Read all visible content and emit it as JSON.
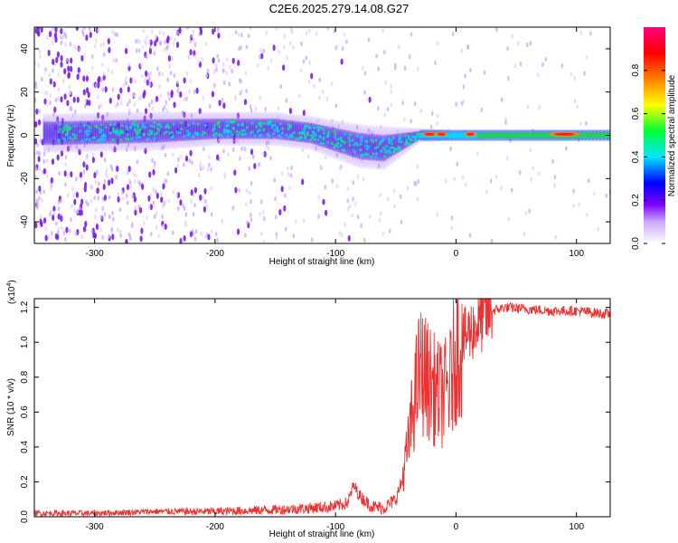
{
  "title": "C2E6.2025.279.14.08.G27",
  "chart_data": [
    {
      "type": "heatmap",
      "xlabel": "Height of straight line (km)",
      "ylabel": "Frequency (Hz)",
      "xlim": [
        -350,
        128
      ],
      "ylim": [
        -50,
        50
      ],
      "xticks": [
        -300,
        -200,
        -100,
        0,
        100
      ],
      "yticks": [
        -40,
        -20,
        0,
        20,
        40
      ],
      "colorbar": {
        "label": "Normalized spectral amplitude",
        "range": [
          0.0,
          1.0
        ],
        "ticks": [
          0.0,
          0.2,
          0.4,
          0.6,
          0.8
        ],
        "colors": [
          "#ffffff",
          "#7e00ff",
          "#0000ff",
          "#00e5ff",
          "#00ff33",
          "#ffff00",
          "#ff7f00",
          "#ff0000",
          "#ff0080"
        ]
      },
      "ridge": {
        "x": [
          -330,
          -250,
          -200,
          -150,
          -120,
          -100,
          -80,
          -60,
          -45,
          -30,
          0,
          50,
          100,
          128
        ],
        "frequency": [
          1,
          2,
          3,
          3,
          1,
          -2,
          -5,
          -6,
          -3,
          0,
          0,
          0,
          0,
          0
        ],
        "halfwidth": [
          8,
          8,
          7,
          7,
          7,
          8,
          9,
          9,
          6,
          3,
          2,
          2,
          2,
          2
        ]
      }
    },
    {
      "type": "line",
      "xlabel": "Height of straight line (km)",
      "ylabel": "SNR (10 * v/v)",
      "scale_label": "(x10",
      "scale_exp": "4",
      "scale_close": ")",
      "xlim": [
        -350,
        128
      ],
      "ylim": [
        0,
        1.25
      ],
      "xticks": [
        -300,
        -200,
        -100,
        0,
        100
      ],
      "yticks": [
        0.0,
        0.2,
        0.4,
        0.6,
        0.8,
        1.0,
        1.2
      ],
      "ytick_labels": [
        "0.0",
        "0.2",
        "0.4",
        "0.6",
        "0.8",
        "1.0",
        "1.2"
      ],
      "color": "#ee3030",
      "series": [
        {
          "name": "SNR",
          "x": [
            -350,
            -300,
            -250,
            -200,
            -150,
            -120,
            -100,
            -90,
            -85,
            -80,
            -70,
            -60,
            -50,
            -45,
            -40,
            -35,
            -30,
            -25,
            -20,
            -15,
            -10,
            -5,
            0,
            10,
            20,
            30,
            40,
            60,
            80,
            100,
            128
          ],
          "y": [
            0.02,
            0.02,
            0.03,
            0.03,
            0.04,
            0.05,
            0.06,
            0.08,
            0.18,
            0.12,
            0.06,
            0.05,
            0.1,
            0.2,
            0.4,
            0.65,
            0.85,
            0.8,
            0.75,
            0.7,
            0.7,
            0.75,
            0.95,
            1.05,
            1.12,
            1.18,
            1.2,
            1.19,
            1.18,
            1.18,
            1.16
          ]
        }
      ]
    }
  ]
}
